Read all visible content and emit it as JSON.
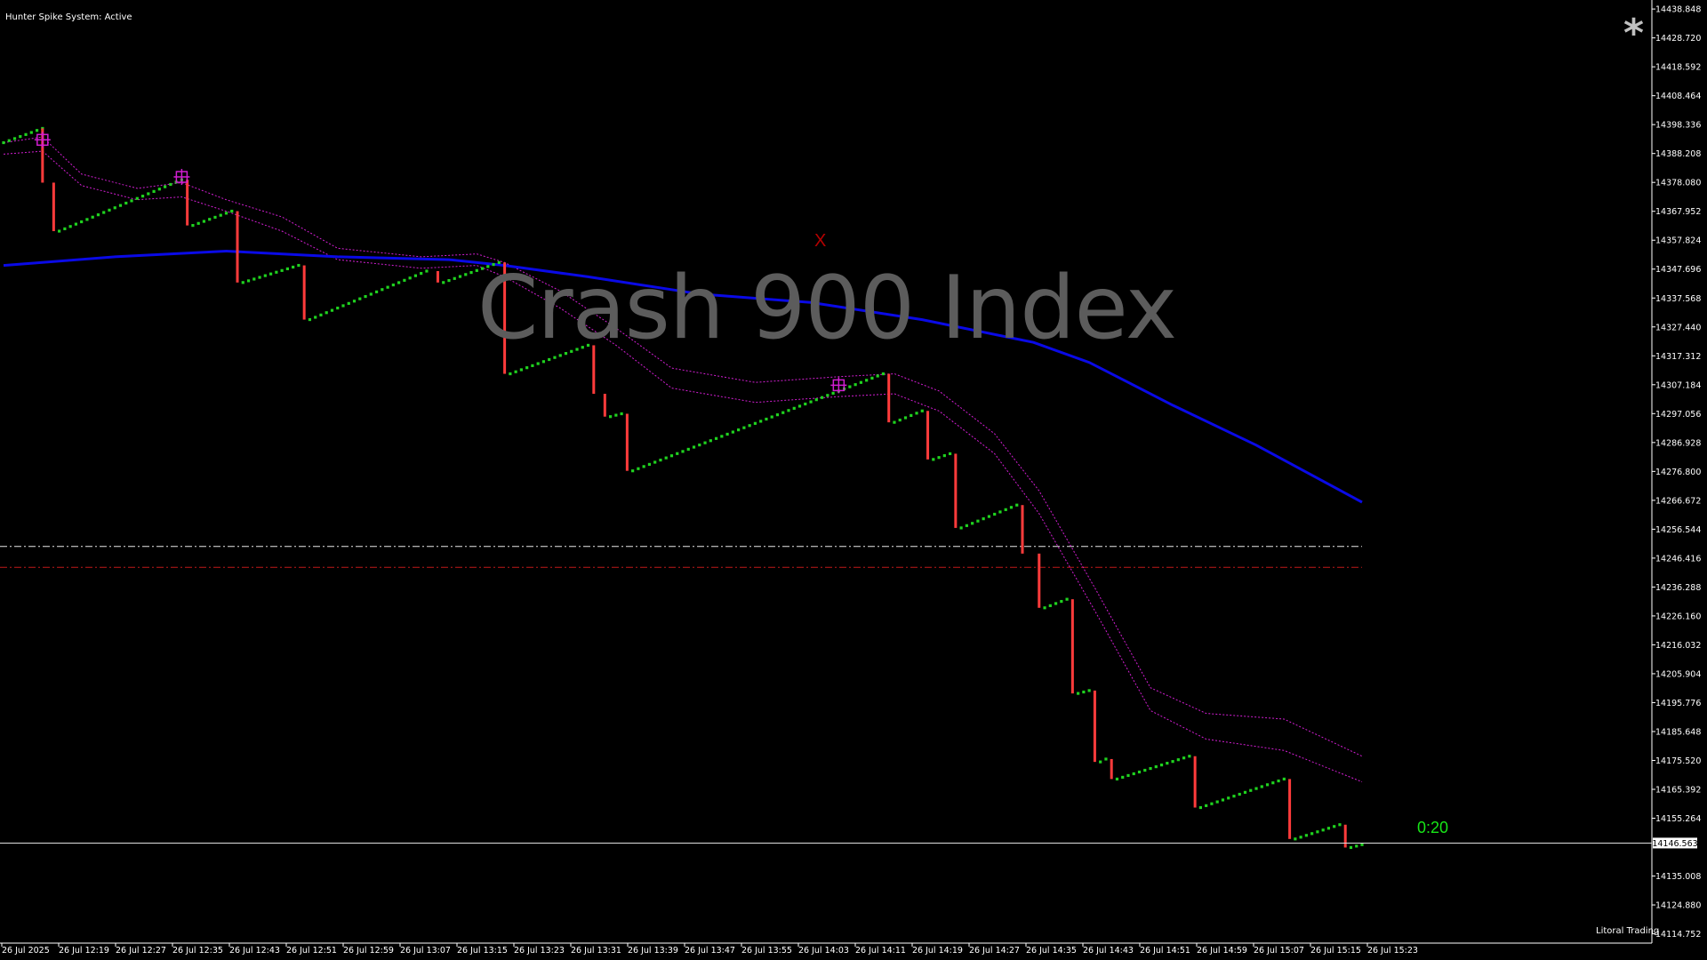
{
  "indicator": {
    "label": "Hunter Spike System: Active"
  },
  "watermark": {
    "symbol": "Crash 900 Index"
  },
  "footer": {
    "label": "Litoral Trading"
  },
  "countdown": {
    "text": "0:20"
  },
  "marker_x": {
    "text": "X"
  },
  "asterisk": {
    "text": "*"
  },
  "colors": {
    "background": "#000000",
    "bull": "#1fd21f",
    "bear": "#ff3b3b",
    "ma": "#0a0ae6",
    "envelope": "#d21ed2",
    "signal": "#d21ed2",
    "level_upper": "#e8e8e8",
    "level_lower": "#c01818",
    "price_line": "#e0e0e0"
  },
  "chart_data": {
    "type": "line",
    "symbol": "Crash 900 Index",
    "price_axis_ticks": [
      "14438.848",
      "14428.720",
      "14418.592",
      "14408.464",
      "14398.336",
      "14388.208",
      "14378.080",
      "14367.952",
      "14357.824",
      "14347.696",
      "14337.568",
      "14327.440",
      "14317.312",
      "14307.184",
      "14297.056",
      "14286.928",
      "14276.800",
      "14266.672",
      "14256.544",
      "14246.416",
      "14236.288",
      "14226.160",
      "14216.032",
      "14205.904",
      "14195.776",
      "14185.648",
      "14175.520",
      "14165.392",
      "14155.264",
      "14135.008",
      "14124.880",
      "14114.752"
    ],
    "current_price": "14146.563",
    "time_axis_ticks": [
      "26 Jul 2025",
      "26 Jul 12:19",
      "26 Jul 12:27",
      "26 Jul 12:35",
      "26 Jul 12:43",
      "26 Jul 12:51",
      "26 Jul 12:59",
      "26 Jul 13:07",
      "26 Jul 13:15",
      "26 Jul 13:23",
      "26 Jul 13:31",
      "26 Jul 13:39",
      "26 Jul 13:47",
      "26 Jul 13:55",
      "26 Jul 14:03",
      "26 Jul 14:11",
      "26 Jul 14:19",
      "26 Jul 14:27",
      "26 Jul 14:35",
      "26 Jul 14:43",
      "26 Jul 14:51",
      "26 Jul 14:59",
      "26 Jul 15:07",
      "26 Jul 15:15",
      "26 Jul 15:23"
    ],
    "segments": [
      {
        "dir": "up",
        "t0": 0,
        "t1": 7,
        "p0": 14392,
        "p1": 14397
      },
      {
        "dir": "down",
        "t0": 7,
        "t1": 7,
        "p0": 14397,
        "p1": 14378
      },
      {
        "dir": "down",
        "t0": 9,
        "t1": 9,
        "p0": 14378,
        "p1": 14361
      },
      {
        "dir": "up",
        "t0": 10,
        "t1": 32,
        "p0": 14361,
        "p1": 14379
      },
      {
        "dir": "down",
        "t0": 33,
        "t1": 33,
        "p0": 14379,
        "p1": 14363
      },
      {
        "dir": "up",
        "t0": 34,
        "t1": 41,
        "p0": 14363,
        "p1": 14368
      },
      {
        "dir": "down",
        "t0": 42,
        "t1": 42,
        "p0": 14368,
        "p1": 14343
      },
      {
        "dir": "up",
        "t0": 43,
        "t1": 53,
        "p0": 14343,
        "p1": 14349
      },
      {
        "dir": "down",
        "t0": 54,
        "t1": 54,
        "p0": 14349,
        "p1": 14330
      },
      {
        "dir": "up",
        "t0": 55,
        "t1": 76,
        "p0": 14330,
        "p1": 14347
      },
      {
        "dir": "down",
        "t0": 78,
        "t1": 78,
        "p0": 14347,
        "p1": 14343
      },
      {
        "dir": "up",
        "t0": 79,
        "t1": 89,
        "p0": 14343,
        "p1": 14350
      },
      {
        "dir": "down",
        "t0": 90,
        "t1": 90,
        "p0": 14350,
        "p1": 14311
      },
      {
        "dir": "up",
        "t0": 91,
        "t1": 105,
        "p0": 14311,
        "p1": 14321
      },
      {
        "dir": "down",
        "t0": 106,
        "t1": 106,
        "p0": 14321,
        "p1": 14304
      },
      {
        "dir": "down",
        "t0": 108,
        "t1": 108,
        "p0": 14304,
        "p1": 14296
      },
      {
        "dir": "up",
        "t0": 109,
        "t1": 111,
        "p0": 14296,
        "p1": 14297
      },
      {
        "dir": "down",
        "t0": 112,
        "t1": 112,
        "p0": 14297,
        "p1": 14277
      },
      {
        "dir": "up",
        "t0": 113,
        "t1": 158,
        "p0": 14277,
        "p1": 14311
      },
      {
        "dir": "down",
        "t0": 159,
        "t1": 159,
        "p0": 14311,
        "p1": 14294
      },
      {
        "dir": "up",
        "t0": 160,
        "t1": 165,
        "p0": 14294,
        "p1": 14298
      },
      {
        "dir": "down",
        "t0": 166,
        "t1": 166,
        "p0": 14298,
        "p1": 14281
      },
      {
        "dir": "up",
        "t0": 167,
        "t1": 170,
        "p0": 14281,
        "p1": 14283
      },
      {
        "dir": "down",
        "t0": 171,
        "t1": 171,
        "p0": 14283,
        "p1": 14257
      },
      {
        "dir": "up",
        "t0": 172,
        "t1": 182,
        "p0": 14257,
        "p1": 14265
      },
      {
        "dir": "down",
        "t0": 183,
        "t1": 183,
        "p0": 14265,
        "p1": 14248
      },
      {
        "dir": "down",
        "t0": 186,
        "t1": 186,
        "p0": 14248,
        "p1": 14229
      },
      {
        "dir": "up",
        "t0": 187,
        "t1": 191,
        "p0": 14229,
        "p1": 14232
      },
      {
        "dir": "down",
        "t0": 192,
        "t1": 192,
        "p0": 14232,
        "p1": 14199
      },
      {
        "dir": "up",
        "t0": 193,
        "t1": 195,
        "p0": 14199,
        "p1": 14200
      },
      {
        "dir": "down",
        "t0": 196,
        "t1": 196,
        "p0": 14200,
        "p1": 14175
      },
      {
        "dir": "up",
        "t0": 197,
        "t1": 198,
        "p0": 14175,
        "p1": 14176
      },
      {
        "dir": "down",
        "t0": 199,
        "t1": 199,
        "p0": 14176,
        "p1": 14169
      },
      {
        "dir": "up",
        "t0": 200,
        "t1": 213,
        "p0": 14169,
        "p1": 14177
      },
      {
        "dir": "down",
        "t0": 214,
        "t1": 214,
        "p0": 14177,
        "p1": 14159
      },
      {
        "dir": "up",
        "t0": 215,
        "t1": 230,
        "p0": 14159,
        "p1": 14169
      },
      {
        "dir": "down",
        "t0": 231,
        "t1": 231,
        "p0": 14169,
        "p1": 14148
      },
      {
        "dir": "up",
        "t0": 232,
        "t1": 240,
        "p0": 14148,
        "p1": 14153
      },
      {
        "dir": "down",
        "t0": 241,
        "t1": 241,
        "p0": 14153,
        "p1": 14145
      },
      {
        "dir": "up",
        "t0": 242,
        "t1": 244,
        "p0": 14145,
        "p1": 14146
      }
    ],
    "moving_average": [
      [
        0,
        14349
      ],
      [
        20,
        14352
      ],
      [
        40,
        14354
      ],
      [
        60,
        14352
      ],
      [
        80,
        14351
      ],
      [
        90,
        14349
      ],
      [
        105,
        14345
      ],
      [
        125,
        14339
      ],
      [
        145,
        14336
      ],
      [
        165,
        14330
      ],
      [
        185,
        14322
      ],
      [
        195,
        14315
      ],
      [
        210,
        14300
      ],
      [
        225,
        14286
      ],
      [
        244,
        14266
      ]
    ],
    "envelope_upper": [
      [
        0,
        14392
      ],
      [
        7,
        14394
      ],
      [
        14,
        14381
      ],
      [
        24,
        14376
      ],
      [
        32,
        14378
      ],
      [
        40,
        14372
      ],
      [
        50,
        14366
      ],
      [
        60,
        14355
      ],
      [
        75,
        14352
      ],
      [
        85,
        14353
      ],
      [
        90,
        14350
      ],
      [
        100,
        14340
      ],
      [
        110,
        14327
      ],
      [
        120,
        14313
      ],
      [
        135,
        14308
      ],
      [
        150,
        14310
      ],
      [
        160,
        14311
      ],
      [
        168,
        14305
      ],
      [
        178,
        14290
      ],
      [
        186,
        14270
      ],
      [
        196,
        14236
      ],
      [
        206,
        14201
      ],
      [
        216,
        14192
      ],
      [
        230,
        14190
      ],
      [
        244,
        14177
      ]
    ],
    "envelope_lower": [
      [
        0,
        14388
      ],
      [
        7,
        14389
      ],
      [
        14,
        14377
      ],
      [
        24,
        14372
      ],
      [
        32,
        14373
      ],
      [
        40,
        14368
      ],
      [
        50,
        14361
      ],
      [
        60,
        14351
      ],
      [
        75,
        14348
      ],
      [
        85,
        14349
      ],
      [
        90,
        14345
      ],
      [
        100,
        14334
      ],
      [
        110,
        14321
      ],
      [
        120,
        14306
      ],
      [
        135,
        14301
      ],
      [
        150,
        14303
      ],
      [
        160,
        14304
      ],
      [
        168,
        14298
      ],
      [
        178,
        14283
      ],
      [
        186,
        14262
      ],
      [
        196,
        14228
      ],
      [
        206,
        14193
      ],
      [
        216,
        14183
      ],
      [
        230,
        14179
      ],
      [
        244,
        14168
      ]
    ],
    "signals": [
      [
        7,
        14393
      ],
      [
        32,
        14380
      ],
      [
        150,
        14307
      ]
    ],
    "levels": {
      "upper": 14250.5,
      "lower": 14243.2
    },
    "xlim": [
      0,
      244
    ],
    "ylim": [
      14111.5,
      14442.0
    ]
  }
}
